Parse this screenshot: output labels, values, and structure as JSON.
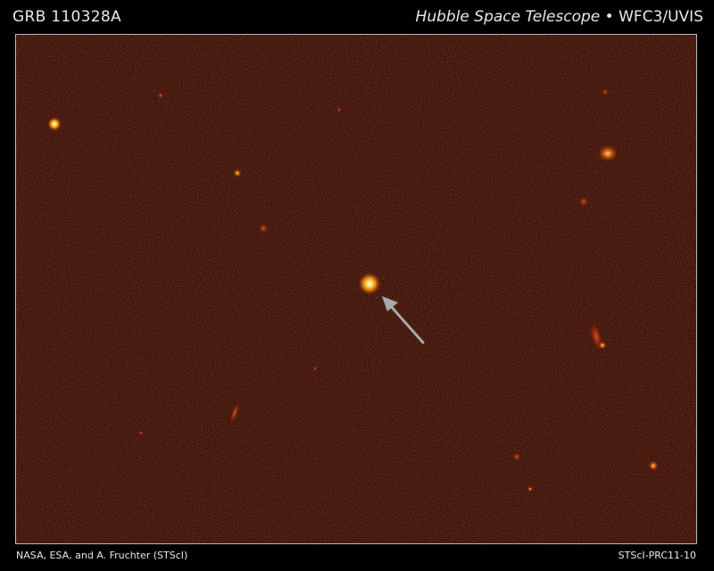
{
  "header": {
    "object_name": "GRB 110328A",
    "telescope": "Hubble Space Telescope",
    "separator": "•",
    "instrument": "WFC3/UVIS"
  },
  "footer": {
    "credit": "NASA, ESA, and A. Fruchter (STScI)",
    "release_id": "STScI-PRC11-10"
  },
  "colors": {
    "background": "#2a0b06",
    "source_core": "#ffffe0",
    "source_glow": "#ff9a1a",
    "arrow": "#a9a9a9"
  }
}
